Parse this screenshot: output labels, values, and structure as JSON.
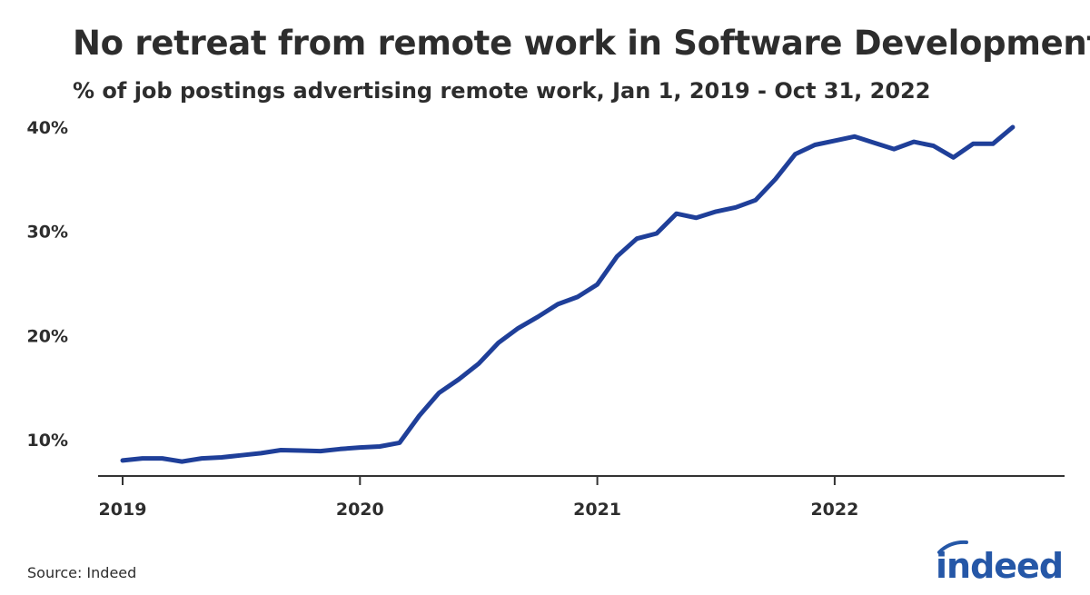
{
  "header": {
    "title": "No retreat from remote work in Software Development",
    "subtitle": "% of job postings advertising remote work, Jan 1, 2019 - Oct 31, 2022"
  },
  "footer": {
    "source": "Source: Indeed",
    "logo_text": "indeed"
  },
  "colors": {
    "line": "#1f3f99",
    "axis": "#333333",
    "text": "#2d2d2d",
    "logo": "#2557a7"
  },
  "chart_data": {
    "type": "line",
    "title": "No retreat from remote work in Software Development",
    "subtitle": "% of job postings advertising remote work, Jan 1, 2019 - Oct 31, 2022",
    "xlabel": "",
    "ylabel": "",
    "x_ticks": [
      "2019",
      "2020",
      "2021",
      "2022"
    ],
    "y_ticks": [
      "10%",
      "20%",
      "30%",
      "40%"
    ],
    "ylim": [
      6.5,
      40
    ],
    "grid": false,
    "legend": "none",
    "series": [
      {
        "name": "",
        "x": [
          "2019-01",
          "2019-02",
          "2019-03",
          "2019-04",
          "2019-05",
          "2019-06",
          "2019-07",
          "2019-08",
          "2019-09",
          "2019-10",
          "2019-11",
          "2019-12",
          "2020-01",
          "2020-02",
          "2020-03",
          "2020-04",
          "2020-05",
          "2020-06",
          "2020-07",
          "2020-08",
          "2020-09",
          "2020-10",
          "2020-11",
          "2020-12",
          "2021-01",
          "2021-02",
          "2021-03",
          "2021-04",
          "2021-05",
          "2021-06",
          "2021-07",
          "2021-08",
          "2021-09",
          "2021-10",
          "2021-11",
          "2021-12",
          "2022-01",
          "2022-02",
          "2022-03",
          "2022-04",
          "2022-05",
          "2022-06",
          "2022-07",
          "2022-08",
          "2022-09",
          "2022-10"
        ],
        "values": [
          8.0,
          8.2,
          8.2,
          7.9,
          8.2,
          8.3,
          8.5,
          8.7,
          9.0,
          8.95,
          8.9,
          9.1,
          9.25,
          9.35,
          9.7,
          12.3,
          14.5,
          15.8,
          17.3,
          19.3,
          20.7,
          21.8,
          23.0,
          23.7,
          24.9,
          27.6,
          29.3,
          29.8,
          31.7,
          31.3,
          31.9,
          32.3,
          33.0,
          35.0,
          37.4,
          38.3,
          38.7,
          39.1,
          38.5,
          37.9,
          38.6,
          38.2,
          37.1,
          38.4,
          38.4,
          40.0
        ]
      }
    ]
  }
}
